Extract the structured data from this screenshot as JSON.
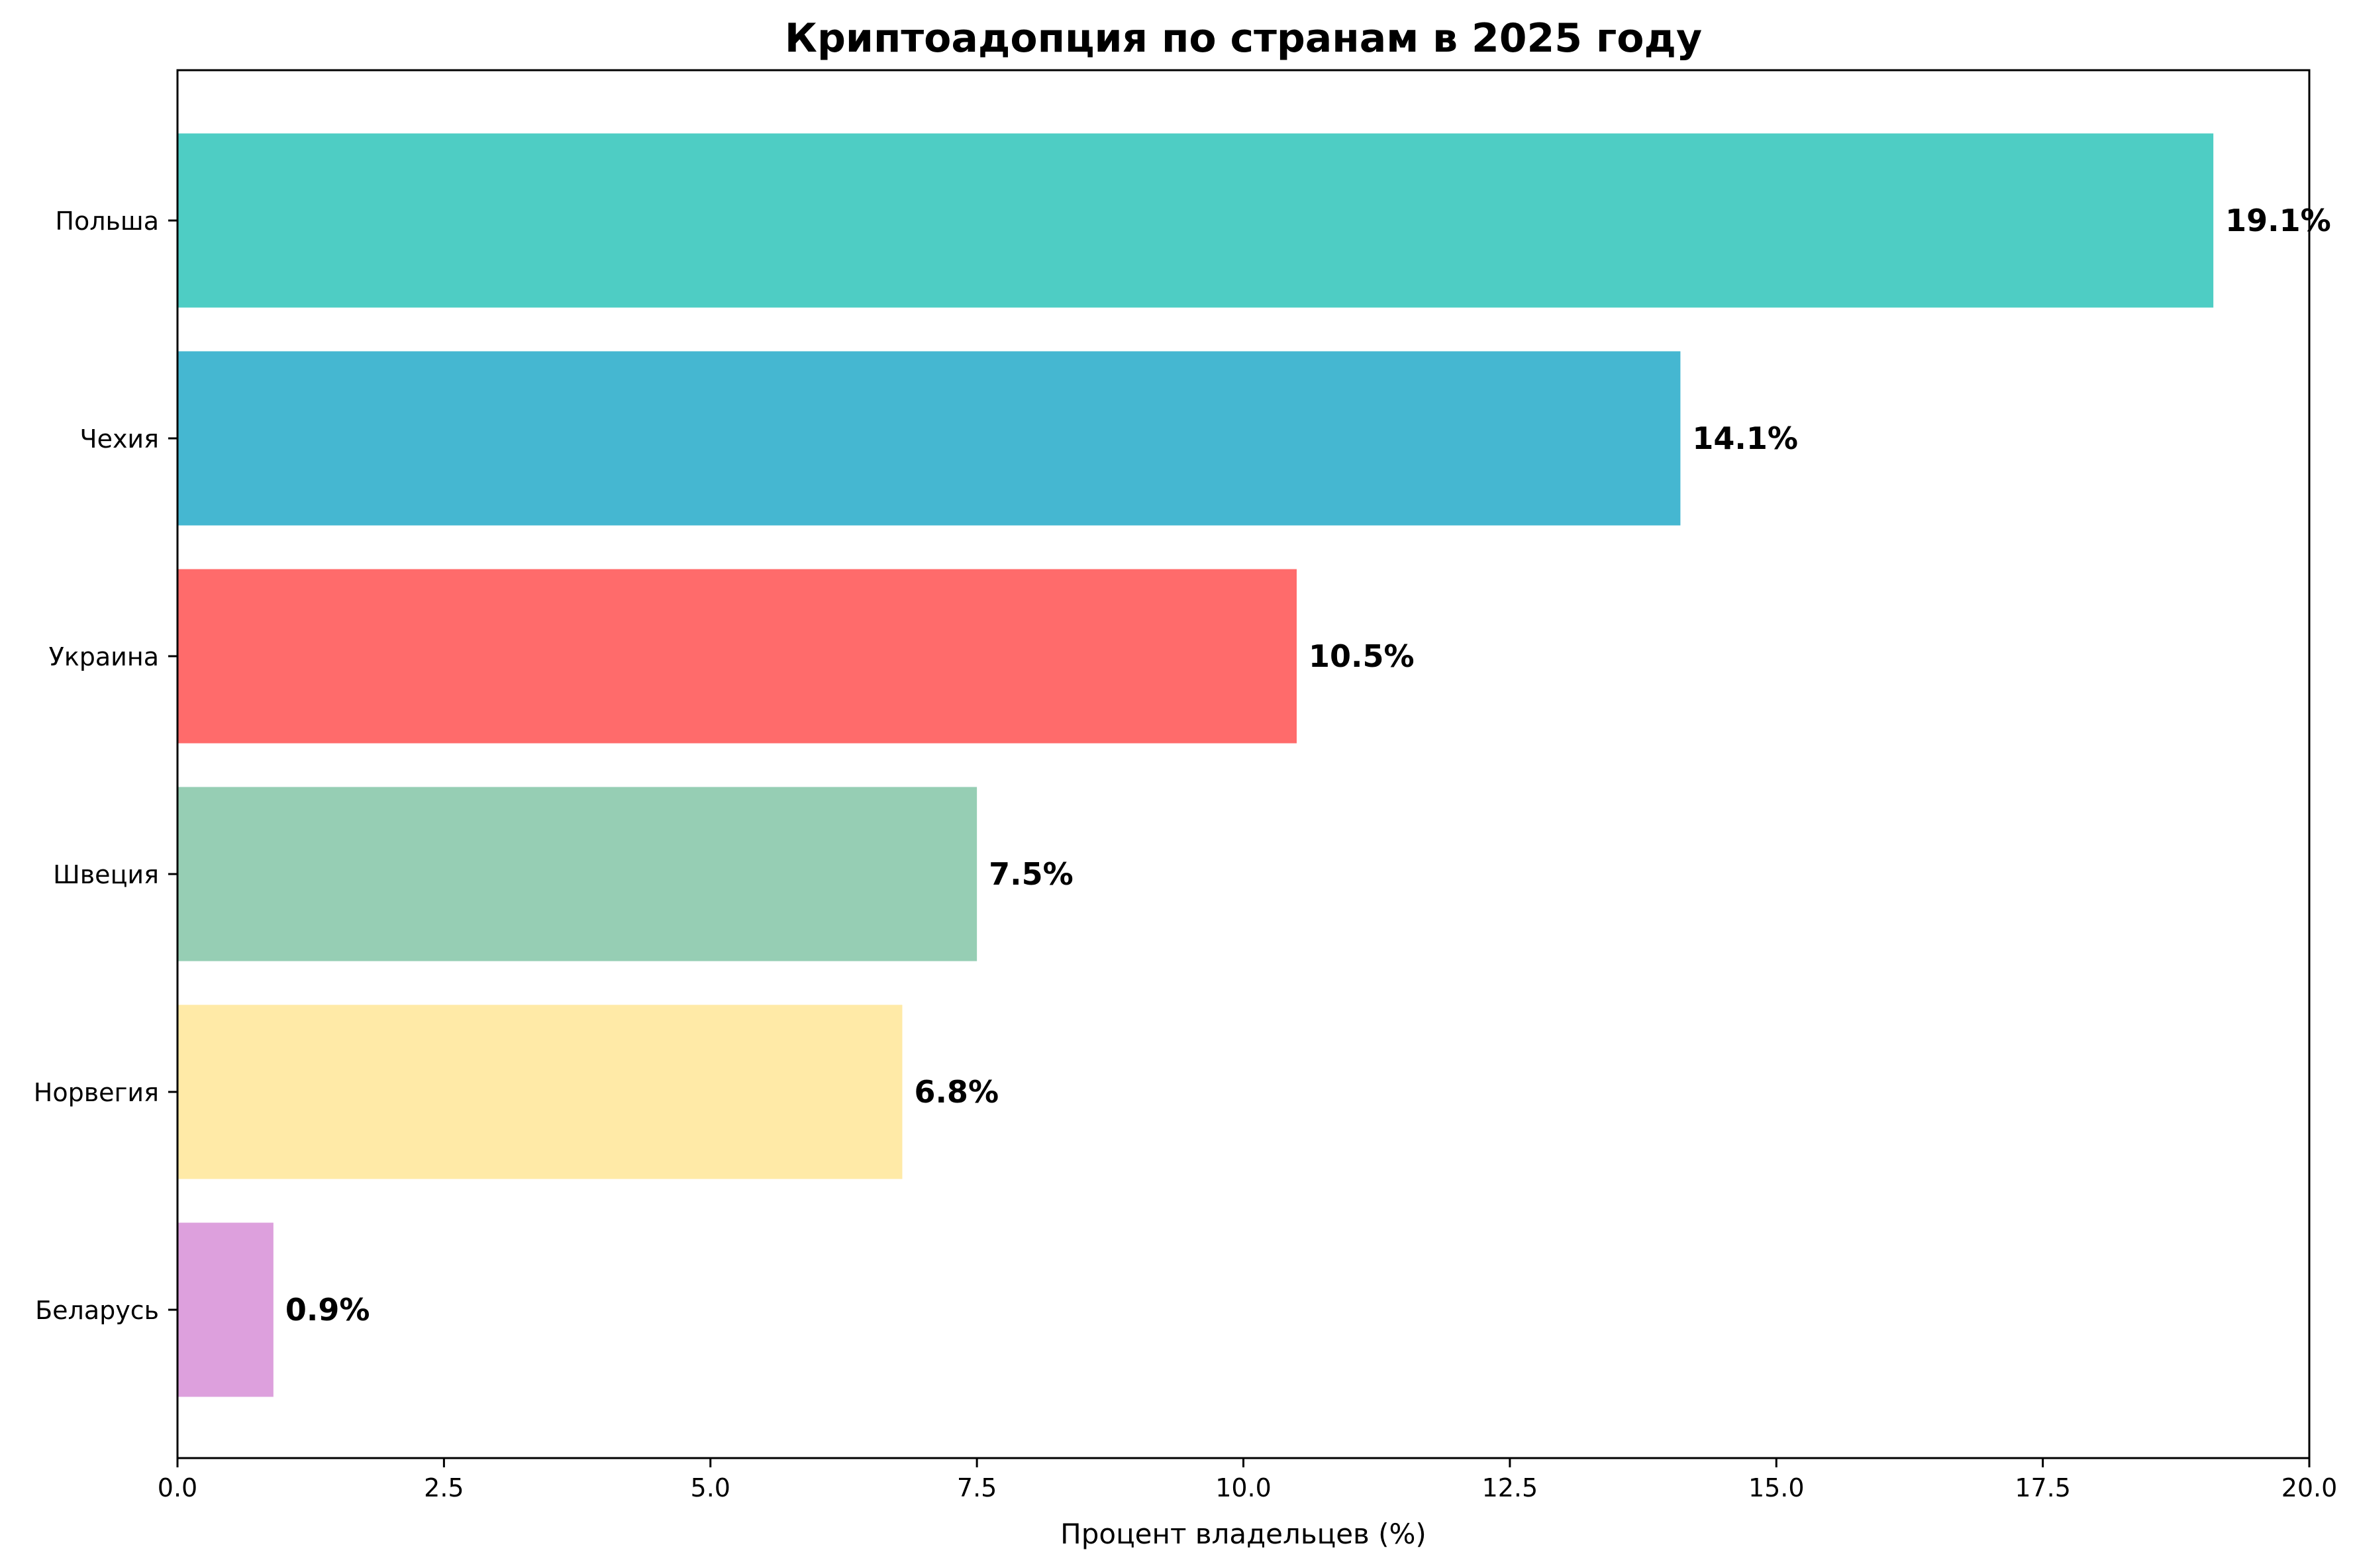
{
  "chart_data": {
    "type": "bar",
    "orientation": "horizontal",
    "title": "Криптоадопция по странам в 2025 году",
    "xlabel": "Процент владельцев (%)",
    "ylabel": "",
    "categories": [
      "Польша",
      "Чехия",
      "Украина",
      "Швеция",
      "Норвегия",
      "Беларусь"
    ],
    "values": [
      19.1,
      14.1,
      10.5,
      7.5,
      6.8,
      0.9
    ],
    "data_labels": [
      "19.1%",
      "14.1%",
      "10.5%",
      "7.5%",
      "6.8%",
      "0.9%"
    ],
    "colors": [
      "#4ECDC4",
      "#45B7D1",
      "#FF6B6B",
      "#96CEB4",
      "#FFEAA7",
      "#DDA0DD"
    ],
    "xlim": [
      0,
      20
    ],
    "xticks": [
      0,
      2.5,
      5,
      7.5,
      10,
      12.5,
      15,
      17.5,
      20
    ],
    "xtick_labels": [
      "0.0",
      "2.5",
      "5.0",
      "7.5",
      "10.0",
      "12.5",
      "15.0",
      "17.5",
      "20.0"
    ],
    "grid": false,
    "legend": "none"
  }
}
